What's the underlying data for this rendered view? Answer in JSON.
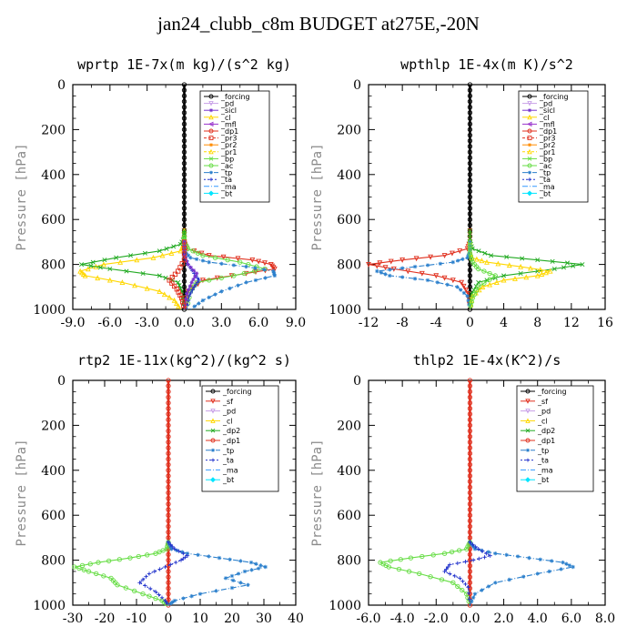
{
  "title": "jan24_clubb_c8m  BUDGET at275E,-20N",
  "colors": {
    "forcing": "#000000",
    "sf": "#e0301e",
    "pd": "#c8a0e8",
    "sicl": "#7733cc",
    "cl": "#ffd700",
    "mfl": "#9933cc",
    "dp1": "#e0301e",
    "dp1_rtp2": "#66dd44",
    "dp2": "#22aa22",
    "pr3": "#e0301e",
    "pr2": "#ff8c00",
    "pr1": "#ffd700",
    "bp": "#66dd44",
    "ac": "#66dd44",
    "tp": "#2a7fcc",
    "ta": "#2233cc",
    "ma": "#3399ff",
    "bt": "#00e5ff",
    "forcing_red": "#e0301e"
  },
  "chart_data": [
    {
      "type": "line",
      "title": "wprtp  1E-7x(m kg)/(s^2 kg)",
      "ylabel": "Pressure [hPa]",
      "xlim": [
        -9,
        9
      ],
      "ylim": [
        1000,
        0
      ],
      "xticks": [
        "-9.0",
        "-6.0",
        "-3.0",
        "0.0",
        "3.0",
        "6.0",
        "9.0"
      ],
      "yticks": [
        "0",
        "200",
        "400",
        "600",
        "800",
        "1000"
      ],
      "legend": [
        "_forcing",
        "_pd",
        "_sicl",
        "_cl",
        "_mfl",
        "_dp1",
        "_pr3",
        "_pr2",
        "_pr1",
        "_bp",
        "_ac",
        "_tp",
        "_ta",
        "_ma",
        "_bt"
      ],
      "legend_location": "upper right",
      "series": [
        {
          "name": "_forcing",
          "x": [
            0,
            0,
            0,
            0,
            0,
            0,
            0,
            0,
            0,
            0,
            0
          ],
          "y": [
            0,
            100,
            200,
            300,
            400,
            500,
            600,
            700,
            800,
            900,
            1000
          ]
        },
        {
          "name": "_dp1",
          "x": [
            0,
            0,
            0.2,
            2.0,
            5.5,
            7.0,
            7.3,
            5.0,
            1.5,
            0.3,
            0.1
          ],
          "y": [
            650,
            700,
            730,
            760,
            780,
            800,
            820,
            840,
            870,
            920,
            1000
          ]
        },
        {
          "name": "_pr1",
          "x": [
            0,
            0,
            -0.3,
            -2.5,
            -6.5,
            -8.4,
            -8.0,
            -5.0,
            -2.0,
            -0.8,
            -0.3
          ],
          "y": [
            650,
            700,
            740,
            770,
            800,
            830,
            850,
            880,
            920,
            960,
            1000
          ]
        },
        {
          "name": "_bp",
          "x": [
            0,
            0,
            -0.3,
            -2.0,
            -5.5,
            -8.3,
            -6.0,
            -2.0,
            -0.5,
            -0.2,
            0
          ],
          "y": [
            650,
            680,
            710,
            740,
            770,
            800,
            820,
            850,
            880,
            920,
            1000
          ]
        },
        {
          "name": "_ac",
          "x": [
            0,
            0,
            0.3,
            1.5,
            4.5,
            6.5,
            4.0,
            1.0,
            0.5,
            0.2
          ],
          "y": [
            680,
            700,
            730,
            760,
            790,
            820,
            850,
            880,
            920,
            1000
          ]
        },
        {
          "name": "_tp",
          "x": [
            0,
            0,
            0.5,
            2.0,
            5.0,
            7.2,
            7.3,
            5.0,
            3.0,
            1.5,
            0.5
          ],
          "y": [
            700,
            740,
            770,
            790,
            810,
            830,
            850,
            880,
            920,
            960,
            1000
          ]
        },
        {
          "name": "_ta",
          "x": [
            0,
            0,
            0.3,
            0.8,
            1.2,
            0.8,
            0.4,
            0.2
          ],
          "y": [
            700,
            750,
            800,
            840,
            870,
            900,
            940,
            1000
          ]
        },
        {
          "name": "_pr2",
          "x": [
            0,
            0,
            0.3,
            1.0,
            0.6,
            0.2,
            0
          ],
          "y": [
            700,
            760,
            800,
            840,
            880,
            930,
            1000
          ]
        },
        {
          "name": "_pr3",
          "x": [
            0,
            0,
            -0.5,
            -1.2,
            -0.6,
            -0.2,
            0
          ],
          "y": [
            700,
            780,
            830,
            870,
            910,
            950,
            1000
          ]
        }
      ]
    },
    {
      "type": "line",
      "title": "wpthlp  1E-4x(m K)/s^2",
      "ylabel": "Pressure [hPa]",
      "xlim": [
        -12,
        16
      ],
      "ylim": [
        1000,
        0
      ],
      "xticks": [
        "-12",
        "-8",
        "-4",
        "0",
        "4",
        "8",
        "12",
        "16"
      ],
      "yticks": [
        "0",
        "200",
        "400",
        "600",
        "800",
        "1000"
      ],
      "legend": [
        "_forcing",
        "_pd",
        "_sicl",
        "_cl",
        "_mfl",
        "_dp1",
        "_pr3",
        "_pr2",
        "_pr1",
        "_bp",
        "_ac",
        "_tp",
        "_ta",
        "_ma",
        "_bt"
      ],
      "legend_location": "upper right",
      "series": [
        {
          "name": "_forcing",
          "x": [
            0,
            0,
            0,
            0,
            0,
            0,
            0,
            0,
            0,
            0,
            0
          ],
          "y": [
            0,
            100,
            200,
            300,
            400,
            500,
            600,
            700,
            800,
            900,
            1000
          ]
        },
        {
          "name": "_dp1",
          "x": [
            0,
            0,
            -0.3,
            -3.0,
            -8.0,
            -12.0,
            -9.0,
            -4.0,
            -1.0,
            -0.2,
            0
          ],
          "y": [
            650,
            700,
            730,
            760,
            780,
            800,
            820,
            850,
            880,
            930,
            1000
          ]
        },
        {
          "name": "_bp",
          "x": [
            0,
            0,
            0.3,
            2.5,
            8.0,
            13.3,
            10.0,
            4.0,
            1.0,
            0.2,
            0
          ],
          "y": [
            650,
            700,
            730,
            760,
            780,
            800,
            820,
            850,
            880,
            930,
            1000
          ]
        },
        {
          "name": "_pr1",
          "x": [
            0,
            0,
            0.2,
            2.0,
            6.0,
            9.5,
            8.0,
            4.0,
            1.5,
            0.3,
            0
          ],
          "y": [
            700,
            740,
            770,
            790,
            810,
            830,
            850,
            870,
            900,
            940,
            1000
          ]
        },
        {
          "name": "_tp",
          "x": [
            0,
            0,
            -0.3,
            -2.0,
            -6.5,
            -11.0,
            -9.5,
            -5.0,
            -1.5,
            -0.3,
            0
          ],
          "y": [
            700,
            740,
            770,
            790,
            810,
            830,
            850,
            870,
            900,
            940,
            1000
          ]
        },
        {
          "name": "_ac",
          "x": [
            0,
            0,
            0.3,
            1.0,
            3.0,
            1.0,
            0.3,
            0
          ],
          "y": [
            700,
            750,
            790,
            820,
            850,
            900,
            950,
            1000
          ]
        }
      ]
    },
    {
      "type": "line",
      "title": "rtp2  1E-11x(kg^2)/(kg^2 s)",
      "ylabel": "Pressure [hPa]",
      "xlim": [
        -30,
        40
      ],
      "ylim": [
        1000,
        0
      ],
      "xticks": [
        "-30",
        "-20",
        "-10",
        "0",
        "10",
        "20",
        "30",
        "40"
      ],
      "yticks": [
        "0",
        "200",
        "400",
        "600",
        "800",
        "1000"
      ],
      "legend": [
        "_forcing",
        "_sf",
        "_pd",
        "_cl",
        "_dp2",
        "_dp1",
        "_tp",
        "_ta",
        "_ma",
        "_bt"
      ],
      "legend_location": "upper right",
      "series": [
        {
          "name": "_forcing",
          "x": [
            0,
            0,
            0,
            0,
            0,
            0,
            0,
            0,
            0,
            0,
            0
          ],
          "y": [
            0,
            100,
            200,
            300,
            400,
            500,
            600,
            700,
            800,
            900,
            1000
          ]
        },
        {
          "name": "_dp1",
          "x": [
            0,
            -0.5,
            -4,
            -12,
            -22,
            -29.5,
            -25,
            -18,
            -16,
            -8,
            -2,
            0
          ],
          "y": [
            720,
            750,
            770,
            790,
            810,
            830,
            850,
            880,
            910,
            950,
            980,
            1000
          ]
        },
        {
          "name": "_tp",
          "x": [
            0,
            1,
            6,
            16,
            26,
            30.5,
            24,
            18,
            25,
            10,
            2,
            0
          ],
          "y": [
            720,
            750,
            770,
            790,
            810,
            830,
            850,
            880,
            910,
            950,
            980,
            1000
          ]
        },
        {
          "name": "_ta",
          "x": [
            0,
            2,
            6,
            4,
            -1,
            -6,
            -9,
            -4,
            -1,
            0
          ],
          "y": [
            720,
            750,
            780,
            800,
            830,
            860,
            900,
            940,
            980,
            1000
          ]
        }
      ]
    },
    {
      "type": "line",
      "title": "thlp2  1E-4x(K^2)/s",
      "ylabel": "Pressure [hPa]",
      "xlim": [
        -6,
        8
      ],
      "ylim": [
        1000,
        0
      ],
      "xticks": [
        "-6.0",
        "-4.0",
        "-2.0",
        "0.0",
        "2.0",
        "4.0",
        "6.0",
        "8.0"
      ],
      "yticks": [
        "0",
        "200",
        "400",
        "600",
        "800",
        "1000"
      ],
      "legend": [
        "_forcing",
        "_sf",
        "_pd",
        "_cl",
        "_dp2",
        "_dp1",
        "_tp",
        "_ta",
        "_ma",
        "_bt"
      ],
      "legend_location": "upper right",
      "series": [
        {
          "name": "_forcing",
          "x": [
            0,
            0,
            0,
            0,
            0,
            0,
            0,
            0,
            0,
            0,
            0
          ],
          "y": [
            0,
            100,
            200,
            300,
            400,
            500,
            600,
            700,
            800,
            900,
            1000
          ]
        },
        {
          "name": "_dp1",
          "x": [
            0,
            -0.2,
            -1.5,
            -3.5,
            -5.3,
            -4.8,
            -3.0,
            -1.0,
            -0.2,
            0
          ],
          "y": [
            720,
            750,
            770,
            790,
            810,
            830,
            860,
            900,
            950,
            1000
          ]
        },
        {
          "name": "_tp",
          "x": [
            0,
            0.3,
            1.5,
            3.5,
            5.5,
            6.1,
            4.0,
            1.5,
            0.3,
            0
          ],
          "y": [
            720,
            750,
            770,
            790,
            810,
            830,
            860,
            900,
            950,
            1000
          ]
        },
        {
          "name": "_ta",
          "x": [
            0,
            0.5,
            1.2,
            0.2,
            -1.2,
            -1.5,
            -0.6,
            -0.1,
            0
          ],
          "y": [
            720,
            750,
            780,
            800,
            820,
            850,
            880,
            920,
            1000
          ]
        }
      ]
    }
  ]
}
